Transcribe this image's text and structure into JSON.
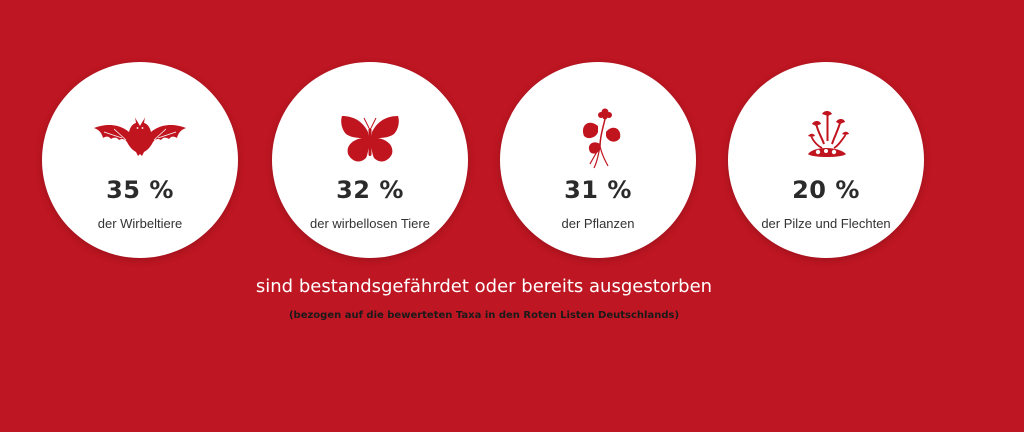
{
  "colors": {
    "background": "#be1622",
    "circle": "#ffffff",
    "icon": "#c0141f",
    "percent_text": "#2b2b2b",
    "headline_text": "#ffffff",
    "subline_text": "#1a1a1a"
  },
  "stats": [
    {
      "icon": "bat-icon",
      "percent": "35 %",
      "label": "der Wirbeltiere"
    },
    {
      "icon": "butterfly-icon",
      "percent": "32 %",
      "label": "der wirbellosen Tiere"
    },
    {
      "icon": "plant-icon",
      "percent": "31 %",
      "label": "der Pflanzen"
    },
    {
      "icon": "fungi-lichen-icon",
      "percent": "20 %",
      "label": "der Pilze und Flechten"
    }
  ],
  "headline": "sind bestandsgefährdet oder bereits ausgestorben",
  "subline": "(bezogen auf die bewerteten Taxa in den Roten Listen Deutschlands)"
}
